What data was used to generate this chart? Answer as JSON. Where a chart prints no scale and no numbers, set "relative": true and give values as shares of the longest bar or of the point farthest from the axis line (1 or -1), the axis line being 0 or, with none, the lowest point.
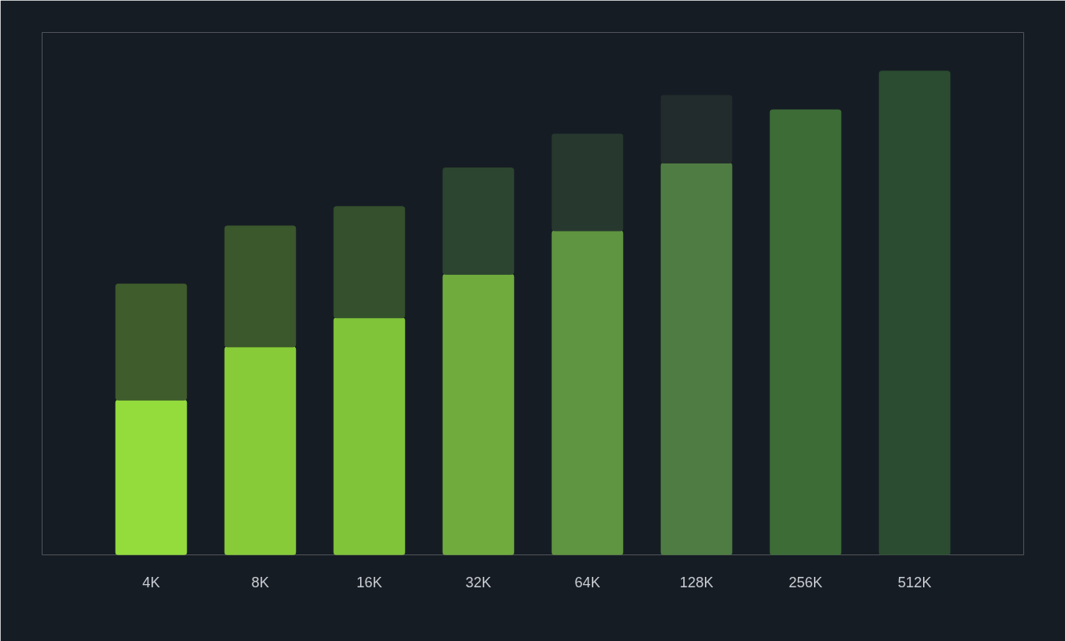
{
  "chart_data": {
    "type": "bar",
    "relative": true,
    "stacked": true,
    "categories": [
      "4K",
      "8K",
      "16K",
      "32K",
      "64K",
      "128K",
      "256K",
      "512K"
    ],
    "series": [
      {
        "colors": [
          "#93dc3c",
          "#87cc38",
          "#80c43a",
          "#70ab3e",
          "#5f9440",
          "#4e7c42",
          "#3d6c37",
          "#2b4c30"
        ],
        "values": [
          0.32,
          0.43,
          0.49,
          0.58,
          0.67,
          0.81,
          0.92,
          1
        ]
      },
      {
        "colors": [
          "#3f5c2c",
          "#3b572c",
          "#34502d",
          "#2c4530",
          "#27392f",
          "#232c2c",
          "#232c2c",
          "#232c2c"
        ],
        "values": [
          0.24,
          0.25,
          0.23,
          0.22,
          0.2,
          0.14,
          null,
          null
        ]
      }
    ]
  }
}
